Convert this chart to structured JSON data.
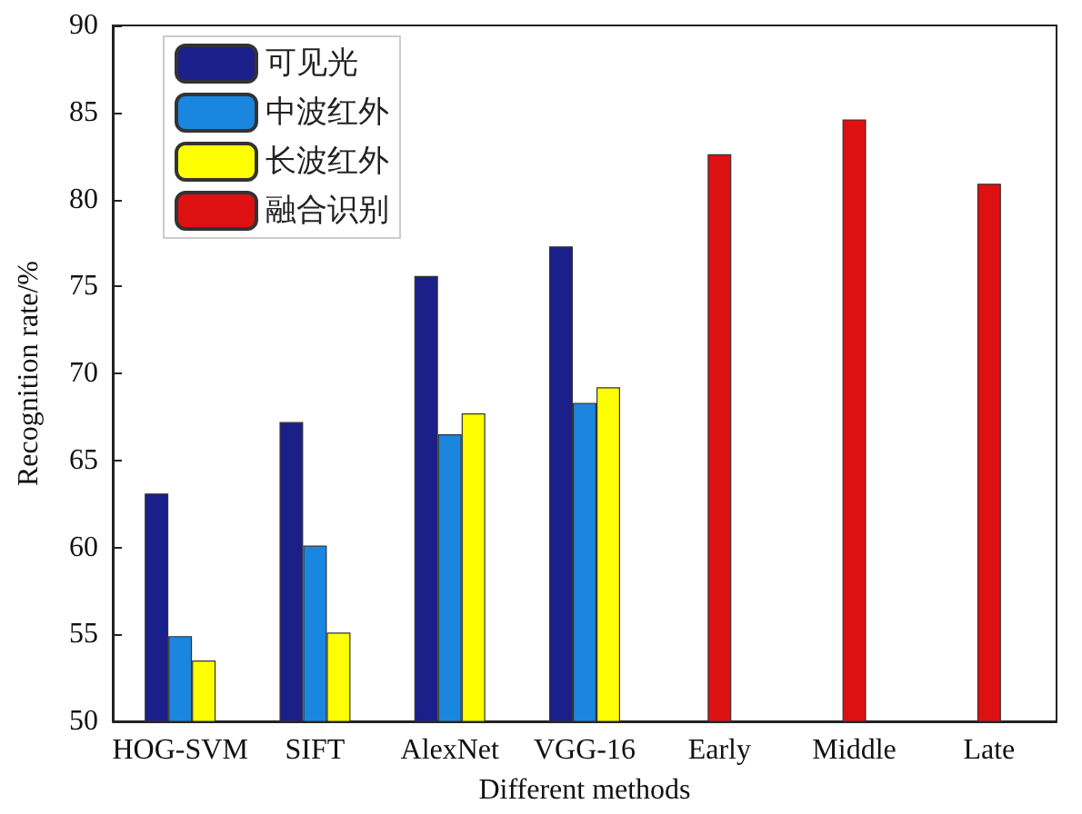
{
  "chart_data": {
    "type": "bar",
    "xlabel": "Different methods",
    "ylabel": "Recognition rate/%",
    "categories": [
      "HOG-SVM",
      "SIFT",
      "AlexNet",
      "VGG-16",
      "Early",
      "Middle",
      "Late"
    ],
    "series": [
      {
        "name": "可见光",
        "color": "#1a1f8a",
        "values": [
          63.1,
          67.2,
          75.6,
          77.3,
          null,
          null,
          null
        ]
      },
      {
        "name": "中波红外",
        "color": "#1a86e0",
        "values": [
          54.9,
          60.1,
          66.5,
          68.3,
          null,
          null,
          null
        ]
      },
      {
        "name": "长波红外",
        "color": "#ffff00",
        "values": [
          53.5,
          55.1,
          67.7,
          69.2,
          null,
          null,
          null
        ]
      },
      {
        "name": "融合识别",
        "color": "#dd1111",
        "values": [
          null,
          null,
          null,
          null,
          82.6,
          84.6,
          80.9
        ]
      }
    ],
    "ylim": [
      50,
      90
    ],
    "yticks": [
      50,
      55,
      60,
      65,
      70,
      75,
      80,
      85,
      90
    ],
    "legend": "top left"
  }
}
